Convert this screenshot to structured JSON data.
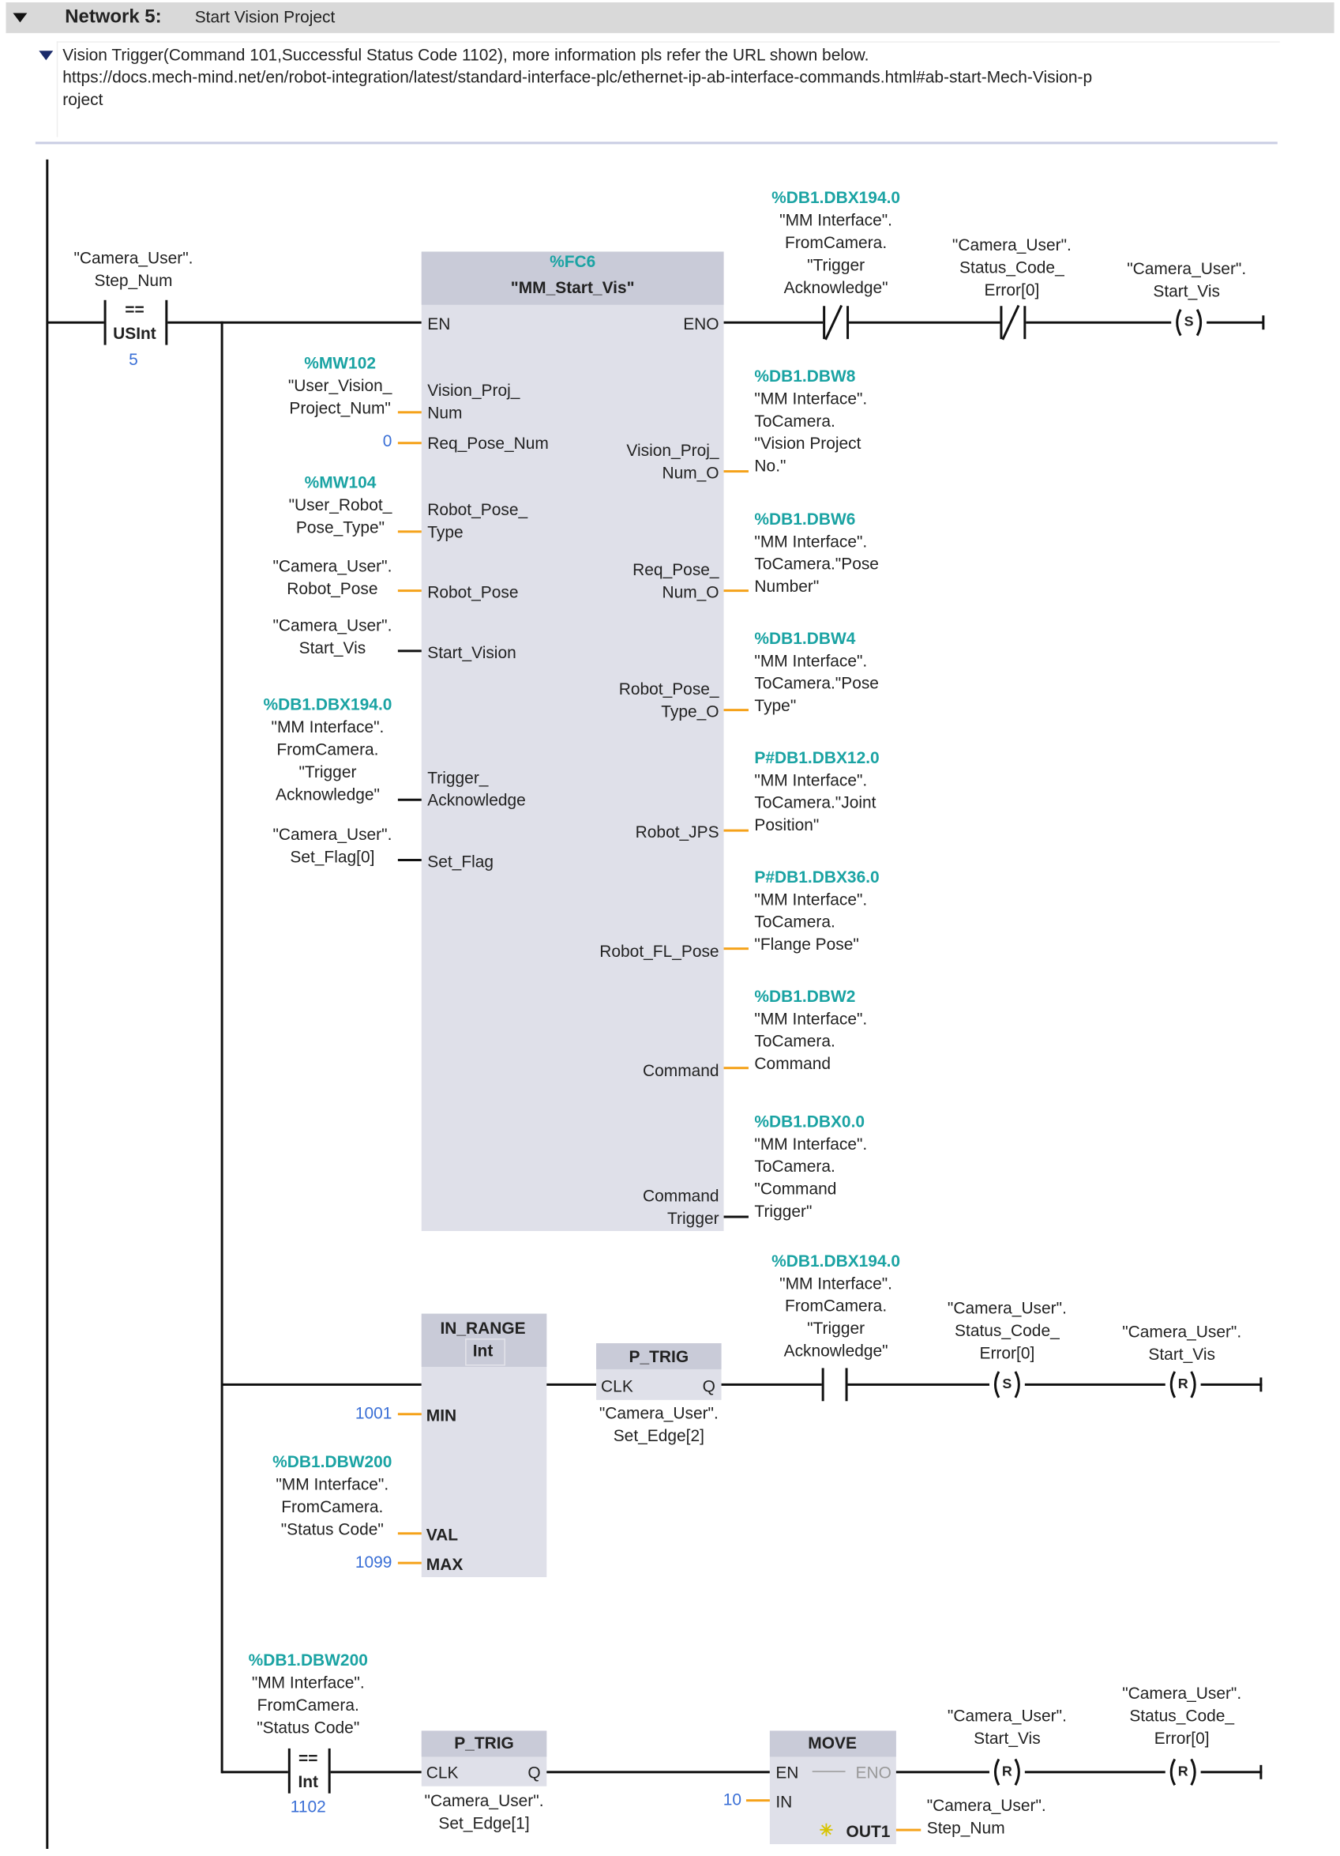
{
  "network": {
    "title": "Network 5:",
    "name": "Start Vision Project",
    "collapse_icon": "triangle-down"
  },
  "comment": {
    "line1": "Vision Trigger(Command 101,Successful Status Code 1102), more information pls refer the URL shown below.",
    "line2": "https://docs.mech-mind.net/en/robot-integration/latest/standard-interface-plc/ethernet-ip-ab-interface-commands.html#ab-start-Mech-Vision-p",
    "line3": "roject"
  },
  "rung1": {
    "compare": {
      "operand": "\"Camera_User\".\nStep_Num",
      "op": "==",
      "type": "USInt",
      "value": "5"
    },
    "fc": {
      "address": "%FC6",
      "name": "\"MM_Start_Vis\"",
      "en": "EN",
      "eno": "ENO"
    },
    "inputs": [
      {
        "pin": "Vision_Proj_\nNum",
        "operand": "%MW102",
        "tag": "\"User_Vision_\nProject_Num\""
      },
      {
        "pin": "Req_Pose_Num",
        "operand": "0"
      },
      {
        "pin": "Robot_Pose_\nType",
        "operand": "%MW104",
        "tag": "\"User_Robot_\nPose_Type\""
      },
      {
        "pin": "Robot_Pose",
        "tag": "\"Camera_User\".\nRobot_Pose"
      },
      {
        "pin": "Start_Vision",
        "tag": "\"Camera_User\".\nStart_Vis"
      },
      {
        "pin": "Trigger_\nAcknowledge",
        "operand": "%DB1.DBX194.0",
        "tag": "\"MM Interface\".\nFromCamera.\n\"Trigger\nAcknowledge\""
      },
      {
        "pin": "Set_Flag",
        "tag": "\"Camera_User\".\nSet_Flag[0]"
      }
    ],
    "outputs": [
      {
        "pin": "Vision_Proj_\nNum_O",
        "operand": "%DB1.DBW8",
        "tag": "\"MM Interface\".\nToCamera.\n\"Vision Project\nNo.\""
      },
      {
        "pin": "Req_Pose_\nNum_O",
        "operand": "%DB1.DBW6",
        "tag": "\"MM Interface\".\nToCamera.\"Pose\nNumber\""
      },
      {
        "pin": "Robot_Pose_\nType_O",
        "operand": "%DB1.DBW4",
        "tag": "\"MM Interface\".\nToCamera.\"Pose\nType\""
      },
      {
        "pin": "Robot_JPS",
        "operand": "P#DB1.DBX12.0",
        "tag": "\"MM Interface\".\nToCamera.\"Joint\nPosition\""
      },
      {
        "pin": "Robot_FL_Pose",
        "operand": "P#DB1.DBX36.0",
        "tag": "\"MM Interface\".\nToCamera.\n\"Flange Pose\""
      },
      {
        "pin": "Command",
        "operand": "%DB1.DBW2",
        "tag": "\"MM Interface\".\nToCamera.\nCommand"
      },
      {
        "pin": "Command\nTrigger",
        "operand": "%DB1.DBX0.0",
        "tag": "\"MM Interface\".\nToCamera.\n\"Command\nTrigger\""
      }
    ],
    "contact1": {
      "operand": "%DB1.DBX194.0",
      "tag": "\"MM Interface\".\nFromCamera.\n\"Trigger\nAcknowledge\"",
      "type": "normally-closed"
    },
    "contact2": {
      "tag": "\"Camera_User\".\nStatus_Code_\nError[0]",
      "type": "normally-closed"
    },
    "coil": {
      "tag": "\"Camera_User\".\nStart_Vis",
      "letter": "S"
    }
  },
  "rung2": {
    "in_range": {
      "name": "IN_RANGE",
      "type": "Int",
      "min_pin": "MIN",
      "val_pin": "VAL",
      "max_pin": "MAX",
      "min": "1001",
      "max": "1099",
      "val_operand": "%DB1.DBW200",
      "val_tag": "\"MM Interface\".\nFromCamera.\n\"Status Code\""
    },
    "ptrig": {
      "name": "P_TRIG",
      "clk": "CLK",
      "q": "Q",
      "tag": "\"Camera_User\".\nSet_Edge[2]"
    },
    "contact": {
      "operand": "%DB1.DBX194.0",
      "tag": "\"MM Interface\".\nFromCamera.\n\"Trigger\nAcknowledge\"",
      "type": "normally-open"
    },
    "coil_s": {
      "tag": "\"Camera_User\".\nStatus_Code_\nError[0]",
      "letter": "S"
    },
    "coil_r": {
      "tag": "\"Camera_User\".\nStart_Vis",
      "letter": "R"
    }
  },
  "rung3": {
    "compare": {
      "operand": "%DB1.DBW200",
      "tag": "\"MM Interface\".\nFromCamera.\n\"Status Code\"",
      "op": "==",
      "type": "Int",
      "value": "1102"
    },
    "ptrig": {
      "name": "P_TRIG",
      "clk": "CLK",
      "q": "Q",
      "tag": "\"Camera_User\".\nSet_Edge[1]"
    },
    "move": {
      "name": "MOVE",
      "en": "EN",
      "eno": "ENO",
      "in": "IN",
      "out": "OUT1",
      "in_value": "10",
      "out_tag": "\"Camera_User\".\nStep_Num"
    },
    "coil_r1": {
      "tag": "\"Camera_User\".\nStart_Vis",
      "letter": "R"
    },
    "coil_r2": {
      "tag": "\"Camera_User\".\nStatus_Code_\nError[0]",
      "letter": "R"
    }
  }
}
